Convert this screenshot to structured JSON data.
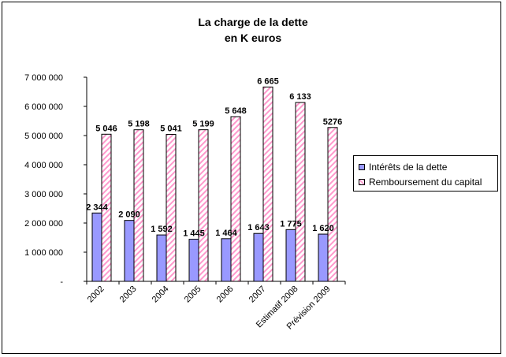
{
  "chart_data": {
    "type": "bar",
    "title": [
      "La charge de la dette",
      "en K euros"
    ],
    "categories": [
      "2002",
      "2003",
      "2004",
      "2005",
      "2006",
      "2007",
      "Estimatif 2008",
      "Prévision 2009"
    ],
    "series": [
      {
        "name": "Intérêts de la dette",
        "color": "#9999ff",
        "values": [
          2344000,
          2090000,
          1592000,
          1445000,
          1464000,
          1643000,
          1775000,
          1620000
        ],
        "data_labels": [
          "2 344",
          "2 090",
          "1 592",
          "1 445",
          "1 464",
          "1 643",
          "1 775",
          "1 620"
        ]
      },
      {
        "name": "Remboursement du capital",
        "color": "#ff99cc",
        "pattern": "diagonal-hatch",
        "values": [
          5046000,
          5198000,
          5041000,
          5199000,
          5648000,
          6665000,
          6133000,
          5276000
        ],
        "data_labels": [
          "5 046",
          "5 198",
          "5 041",
          "5 199",
          "5 648",
          "6 665",
          "6  133",
          "5276"
        ]
      }
    ],
    "yticks": [
      "-",
      "1 000 000",
      "2 000 000",
      "3 000 000",
      "4 000 000",
      "5 000 000",
      "6 000 000",
      "7 000 000"
    ],
    "ylim": [
      0,
      7000000
    ],
    "grid": false,
    "legend_position": "right"
  }
}
